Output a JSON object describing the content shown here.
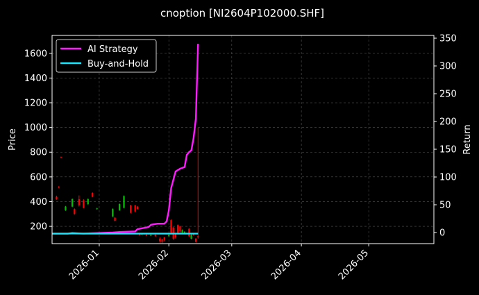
{
  "chart_data": {
    "type": "line",
    "title": "cnoption [NI2604P102000.SHF]",
    "xlabel": "",
    "ylabel_left": "Price",
    "ylabel_right": "Return",
    "xlim": [
      "2025-12-11",
      "2026-05-30"
    ],
    "ylim_left": [
      60,
      1745
    ],
    "ylim_right": [
      -20,
      355
    ],
    "x_ticks": [
      "2026-01",
      "2026-02",
      "2026-03",
      "2026-04",
      "2026-05"
    ],
    "y_ticks_left": [
      200,
      400,
      600,
      800,
      1000,
      1200,
      1400,
      1600
    ],
    "y_ticks_right": [
      0,
      50,
      100,
      150,
      200,
      250,
      300,
      350
    ],
    "grid": true,
    "legend_position": "top-left",
    "colors": {
      "background": "#000000",
      "up": "#00c000",
      "down": "#ff0000",
      "ai_strategy": "#ff1aff",
      "buy_and_hold": "#19e6ff"
    },
    "series": [
      {
        "name": "AI Strategy",
        "axis": "right",
        "x": [
          "2025-12-11",
          "2025-12-17",
          "2025-12-24",
          "2025-12-31",
          "2026-01-07",
          "2026-01-10",
          "2026-01-17",
          "2026-01-18",
          "2026-01-23",
          "2026-01-24",
          "2026-01-27",
          "2026-01-30",
          "2026-01-31",
          "2026-02-01",
          "2026-02-02",
          "2026-02-04",
          "2026-02-06",
          "2026-02-08",
          "2026-02-09",
          "2026-02-10",
          "2026-02-11",
          "2026-02-12",
          "2026-02-13",
          "2026-02-14"
        ],
        "values": [
          -2,
          -2,
          -2,
          -1,
          0,
          1,
          2,
          6,
          10,
          14,
          16,
          16,
          20,
          40,
          80,
          110,
          115,
          118,
          140,
          145,
          148,
          170,
          205,
          340
        ]
      },
      {
        "name": "Buy-and-Hold",
        "axis": "right",
        "x": [
          "2025-12-11",
          "2025-12-18",
          "2025-12-20",
          "2025-12-25",
          "2026-01-05",
          "2026-01-20",
          "2026-02-01",
          "2026-02-14"
        ],
        "values": [
          -2,
          -2,
          -1,
          -2,
          -2,
          -2,
          -2,
          -2
        ]
      }
    ],
    "candles": [
      {
        "date": "2025-12-13",
        "open": 440,
        "close": 420,
        "high": 448,
        "low": 415
      },
      {
        "date": "2025-12-14",
        "open": 520,
        "close": 515,
        "high": 525,
        "low": 510
      },
      {
        "date": "2025-12-15",
        "open": 760,
        "close": 755,
        "high": 765,
        "low": 750
      },
      {
        "date": "2025-12-17",
        "open": 330,
        "close": 360,
        "high": 365,
        "low": 325
      },
      {
        "date": "2025-12-20",
        "open": 360,
        "close": 420,
        "high": 425,
        "low": 355
      },
      {
        "date": "2025-12-21",
        "open": 340,
        "close": 300,
        "high": 345,
        "low": 295
      },
      {
        "date": "2025-12-23",
        "open": 420,
        "close": 370,
        "high": 450,
        "low": 360
      },
      {
        "date": "2025-12-25",
        "open": 410,
        "close": 350,
        "high": 420,
        "low": 345
      },
      {
        "date": "2025-12-27",
        "open": 380,
        "close": 420,
        "high": 425,
        "low": 375
      },
      {
        "date": "2025-12-29",
        "open": 470,
        "close": 440,
        "high": 475,
        "low": 435
      },
      {
        "date": "2025-12-31",
        "open": 340,
        "close": 345,
        "high": 350,
        "low": 335
      },
      {
        "date": "2026-01-07",
        "open": 280,
        "close": 340,
        "high": 345,
        "low": 275
      },
      {
        "date": "2026-01-08",
        "open": 270,
        "close": 245,
        "high": 275,
        "low": 240
      },
      {
        "date": "2026-01-10",
        "open": 330,
        "close": 380,
        "high": 385,
        "low": 325
      },
      {
        "date": "2026-01-12",
        "open": 350,
        "close": 445,
        "high": 450,
        "low": 345
      },
      {
        "date": "2026-01-15",
        "open": 370,
        "close": 310,
        "high": 375,
        "low": 305
      },
      {
        "date": "2026-01-17",
        "open": 370,
        "close": 320,
        "high": 375,
        "low": 315
      },
      {
        "date": "2026-01-18",
        "open": 360,
        "close": 340,
        "high": 365,
        "low": 335
      },
      {
        "date": "2026-01-19",
        "open": 140,
        "close": 130,
        "high": 145,
        "low": 125
      },
      {
        "date": "2026-01-20",
        "open": 135,
        "close": 140,
        "high": 145,
        "low": 130
      },
      {
        "date": "2026-01-22",
        "open": 130,
        "close": 125,
        "high": 135,
        "low": 120
      },
      {
        "date": "2026-01-24",
        "open": 125,
        "close": 130,
        "high": 135,
        "low": 120
      },
      {
        "date": "2026-01-26",
        "open": 130,
        "close": 120,
        "high": 135,
        "low": 115
      },
      {
        "date": "2026-01-28",
        "open": 100,
        "close": 80,
        "high": 110,
        "low": 70
      },
      {
        "date": "2026-01-29",
        "open": 95,
        "close": 75,
        "high": 100,
        "low": 65
      },
      {
        "date": "2026-01-30",
        "open": 110,
        "close": 90,
        "high": 115,
        "low": 80
      },
      {
        "date": "2026-02-01",
        "open": 120,
        "close": 130,
        "high": 135,
        "low": 115
      },
      {
        "date": "2026-02-02",
        "open": 250,
        "close": 150,
        "high": 255,
        "low": 145
      },
      {
        "date": "2026-02-03",
        "open": 190,
        "close": 100,
        "high": 195,
        "low": 90
      },
      {
        "date": "2026-02-04",
        "open": 140,
        "close": 110,
        "high": 145,
        "low": 100
      },
      {
        "date": "2026-02-05",
        "open": 210,
        "close": 150,
        "high": 215,
        "low": 145
      },
      {
        "date": "2026-02-06",
        "open": 200,
        "close": 160,
        "high": 205,
        "low": 150
      },
      {
        "date": "2026-02-07",
        "open": 150,
        "close": 170,
        "high": 175,
        "low": 145
      },
      {
        "date": "2026-02-08",
        "open": 150,
        "close": 155,
        "high": 160,
        "low": 145
      },
      {
        "date": "2026-02-10",
        "open": 180,
        "close": 120,
        "high": 185,
        "low": 115
      },
      {
        "date": "2026-02-11",
        "open": 100,
        "close": 130,
        "high": 135,
        "low": 95
      },
      {
        "date": "2026-02-12",
        "open": 140,
        "close": 130,
        "high": 145,
        "low": 125
      },
      {
        "date": "2026-02-13",
        "open": 100,
        "close": 75,
        "high": 105,
        "low": 70
      },
      {
        "date": "2026-02-14",
        "open": 120,
        "close": 110,
        "high": 1000,
        "low": 100
      }
    ]
  }
}
